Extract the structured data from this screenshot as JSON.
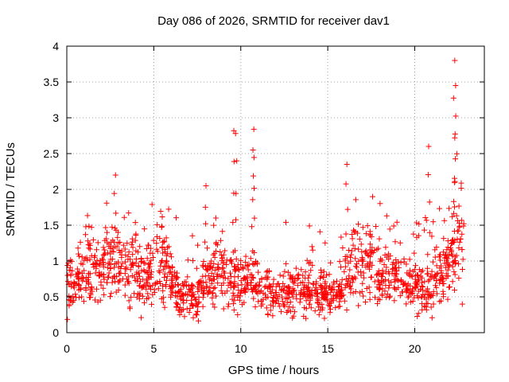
{
  "chart_data": {
    "type": "scatter",
    "title": "Day 086 of 2026, SRMTID for receiver dav1",
    "xlabel": "GPS time / hours",
    "ylabel": "SRMTID / TECUs",
    "xlim": [
      0,
      24
    ],
    "ylim": [
      0,
      4
    ],
    "xticks": [
      0,
      5,
      10,
      15,
      20
    ],
    "xtick_labels": [
      "0",
      "5",
      "10",
      "15",
      "20"
    ],
    "yticks": [
      0,
      0.5,
      1,
      1.5,
      2,
      2.5,
      3,
      3.5,
      4
    ],
    "ytick_labels": [
      "0",
      "0.5",
      "1",
      "1.5",
      "2",
      "2.5",
      "3",
      "3.5",
      "4"
    ],
    "grid": true,
    "marker": "+",
    "series": [
      {
        "name": "SRMTID",
        "color": "#ff0000",
        "hourly_median": [
          0.7,
          0.85,
          1.0,
          0.95,
          0.8,
          1.0,
          0.5,
          0.45,
          0.9,
          0.7,
          0.75,
          0.6,
          0.55,
          0.6,
          0.55,
          0.5,
          0.9,
          0.95,
          0.8,
          0.7,
          0.6,
          0.8,
          1.2,
          1.3
        ],
        "peaks": [
          {
            "x": 2.8,
            "y": 2.2
          },
          {
            "x": 8.0,
            "y": 2.05
          },
          {
            "x": 9.6,
            "y": 2.82
          },
          {
            "x": 9.7,
            "y": 2.78
          },
          {
            "x": 10.75,
            "y": 2.84
          },
          {
            "x": 10.7,
            "y": 2.55
          },
          {
            "x": 16.1,
            "y": 2.35
          },
          {
            "x": 20.8,
            "y": 2.6
          },
          {
            "x": 22.3,
            "y": 3.8
          },
          {
            "x": 22.35,
            "y": 3.45
          },
          {
            "x": 22.3,
            "y": 2.72
          }
        ]
      }
    ]
  }
}
